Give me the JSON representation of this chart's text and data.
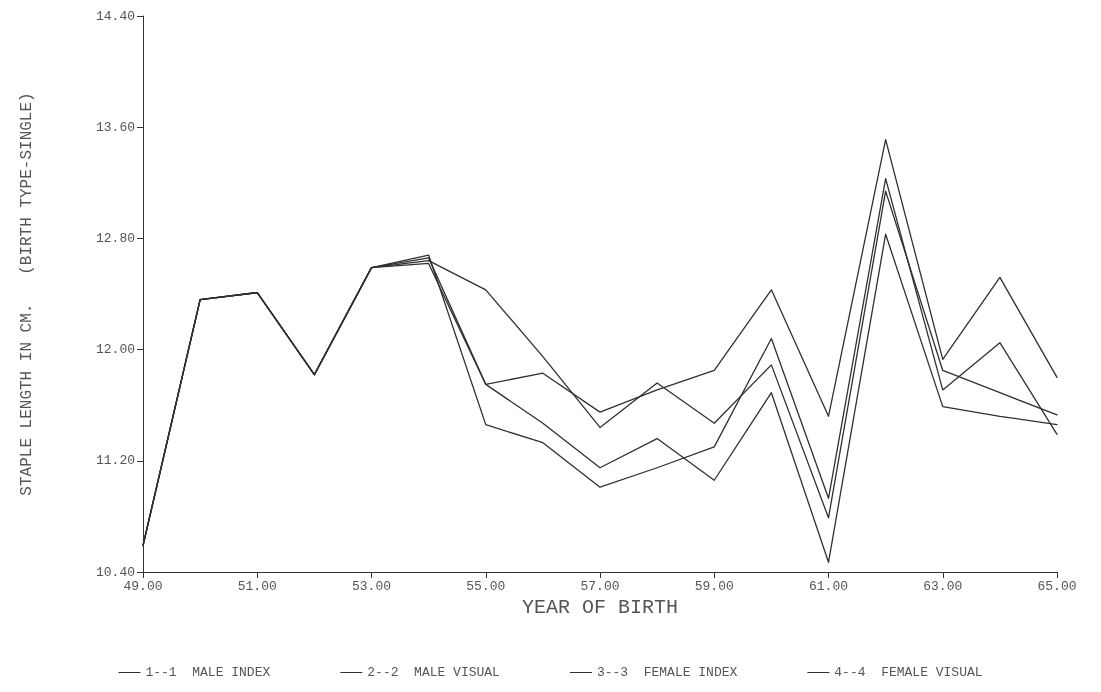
{
  "chart_data": {
    "type": "line",
    "xlabel": "YEAR OF BIRTH",
    "ylabel": "STAPLE LENGTH IN CM.   (BIRTH TYPE-SINGLE)",
    "x": [
      49,
      50,
      51,
      52,
      53,
      54,
      55,
      56,
      57,
      58,
      59,
      60,
      61,
      62,
      63,
      64,
      65
    ],
    "series": [
      {
        "name": "1--1  MALE INDEX",
        "color": "#303030",
        "values": [
          10.59,
          12.36,
          12.41,
          11.82,
          12.59,
          12.66,
          11.75,
          11.83,
          11.55,
          11.71,
          11.85,
          12.43,
          11.52,
          13.51,
          11.93,
          12.52,
          11.8
        ]
      },
      {
        "name": "2--2  MALE VISUAL",
        "color": "#303030",
        "values": [
          10.59,
          12.36,
          12.41,
          11.82,
          12.59,
          12.68,
          11.46,
          11.33,
          11.01,
          11.15,
          11.3,
          12.08,
          10.93,
          13.23,
          11.71,
          12.05,
          11.39
        ]
      },
      {
        "name": "3--3  FEMALE INDEX",
        "color": "#303030",
        "values": [
          10.59,
          12.36,
          12.41,
          11.82,
          12.59,
          12.64,
          12.43,
          11.95,
          11.44,
          11.76,
          11.47,
          11.89,
          10.79,
          13.14,
          11.85,
          11.69,
          11.53
        ]
      },
      {
        "name": "4--4  FEMALE VISUAL",
        "color": "#303030",
        "values": [
          10.59,
          12.36,
          12.41,
          11.82,
          12.59,
          12.62,
          11.75,
          11.47,
          11.15,
          11.36,
          11.06,
          11.69,
          10.47,
          12.83,
          11.59,
          11.52,
          11.46
        ]
      }
    ],
    "xlim": [
      49,
      65
    ],
    "xticks": [
      {
        "value": 49,
        "label": "49.00"
      },
      {
        "value": 51,
        "label": "51.00"
      },
      {
        "value": 53,
        "label": "53.00"
      },
      {
        "value": 55,
        "label": "55.00"
      },
      {
        "value": 57,
        "label": "57.00"
      },
      {
        "value": 59,
        "label": "59.00"
      },
      {
        "value": 61,
        "label": "61.00"
      },
      {
        "value": 63,
        "label": "63.00"
      },
      {
        "value": 65,
        "label": "65.00"
      }
    ],
    "ylim": [
      10.4,
      14.4
    ],
    "yticks": [
      {
        "value": 10.4,
        "label": "10.40"
      },
      {
        "value": 11.2,
        "label": "11.20"
      },
      {
        "value": 12,
        "label": "12.00"
      },
      {
        "value": 12.8,
        "label": "12.80"
      },
      {
        "value": 13.6,
        "label": "13.60"
      },
      {
        "value": 14.4,
        "label": "14.40"
      }
    ],
    "grid": false,
    "legend": "bottom",
    "line_style": "solid"
  }
}
